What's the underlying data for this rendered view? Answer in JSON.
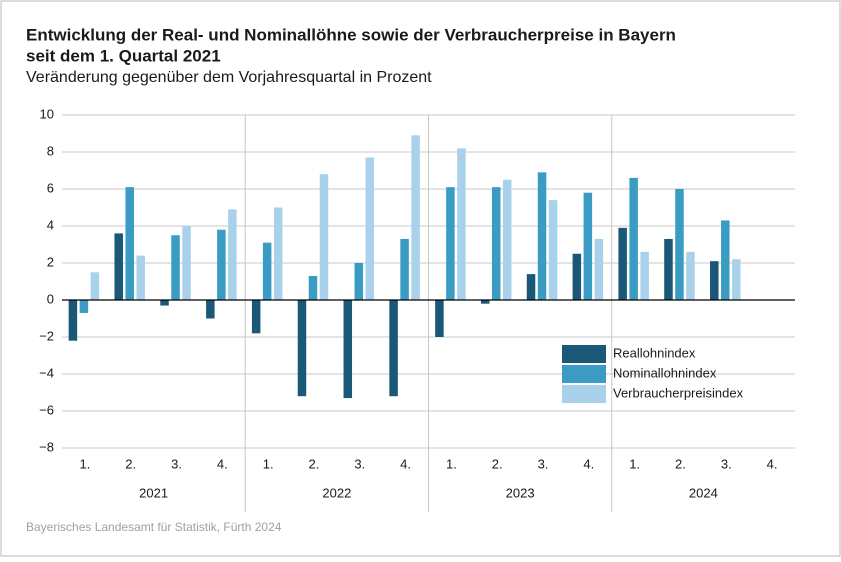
{
  "chart_data": {
    "type": "bar",
    "title": [
      "Entwicklung der Real- und Nominallöhne sowie der Verbraucherpreise in Bayern",
      "seit dem 1. Quartal 2021"
    ],
    "subtitle": "Veränderung gegenüber dem Vorjahresquartal in Prozent",
    "source": "Bayerisches Landesamt für Statistik, Fürth 2024",
    "categories": [
      "1.",
      "2.",
      "3.",
      "4.",
      "1.",
      "2.",
      "3.",
      "4.",
      "1.",
      "2.",
      "3.",
      "4.",
      "1.",
      "2.",
      "3.",
      "4."
    ],
    "groups": [
      "2021",
      "2022",
      "2023",
      "2024"
    ],
    "series": [
      {
        "name": "Reallohnindex",
        "color": "#1b5878",
        "values": [
          -2.2,
          3.6,
          -0.3,
          -1.0,
          -1.8,
          -5.2,
          -5.3,
          -5.2,
          -2.0,
          -0.2,
          1.4,
          2.5,
          3.9,
          3.3,
          2.1,
          null
        ]
      },
      {
        "name": "Nominallohnindex",
        "color": "#3a9cc2",
        "values": [
          -0.7,
          6.1,
          3.5,
          3.8,
          3.1,
          1.3,
          2.0,
          3.3,
          6.1,
          6.1,
          6.9,
          5.8,
          6.6,
          6.0,
          4.3,
          null
        ]
      },
      {
        "name": "Verbraucherpreisindex",
        "color": "#a9d1ec",
        "values": [
          1.5,
          2.4,
          4.0,
          4.9,
          5.0,
          6.8,
          7.7,
          8.9,
          8.2,
          6.5,
          5.4,
          3.3,
          2.6,
          2.6,
          2.2,
          null
        ]
      }
    ],
    "ylim": [
      -8,
      10
    ],
    "yticks": [
      {
        "value": -8,
        "label": "−8"
      },
      {
        "value": -6,
        "label": "−6"
      },
      {
        "value": -4,
        "label": "−4"
      },
      {
        "value": -2,
        "label": "−2"
      },
      0,
      2,
      4,
      6,
      8,
      10
    ],
    "grid": true,
    "legend": "lower right"
  }
}
